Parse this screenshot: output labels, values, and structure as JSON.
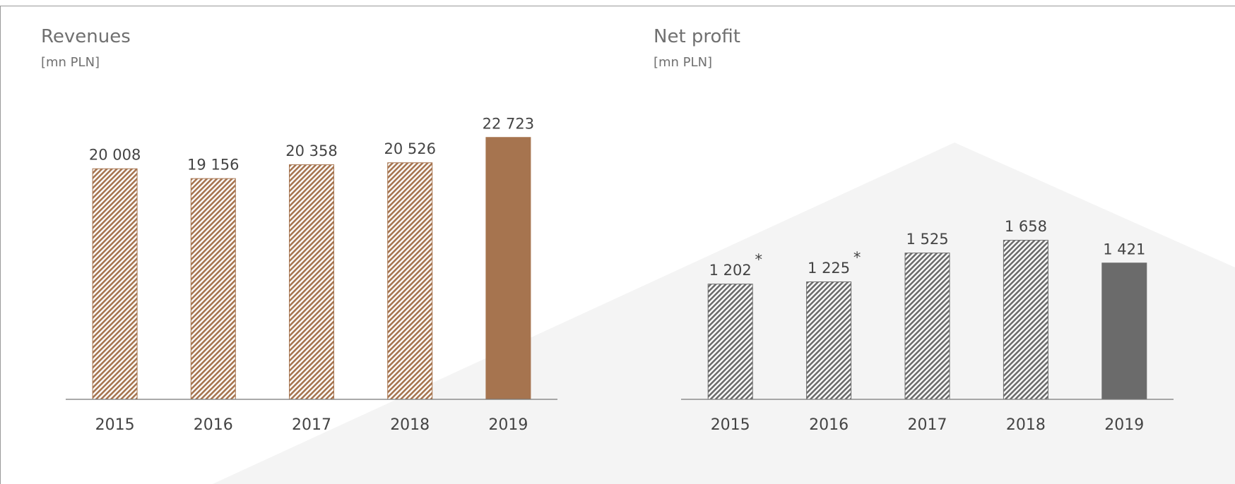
{
  "chart_data": [
    {
      "type": "bar",
      "title": "Revenues",
      "subtitle": "[mn PLN]",
      "categories": [
        "2015",
        "2016",
        "2017",
        "2018",
        "2019"
      ],
      "values": [
        20008,
        19156,
        20358,
        20526,
        22723
      ],
      "value_labels": [
        "20 008",
        "19 156",
        "20 358",
        "20 526",
        "22 723"
      ],
      "color": "#a6744f",
      "hatched": [
        true,
        true,
        true,
        true,
        false
      ],
      "ylim": [
        0,
        25000
      ]
    },
    {
      "type": "bar",
      "title": "Net profit",
      "subtitle": "[mn PLN]",
      "categories": [
        "2015",
        "2016",
        "2017",
        "2018",
        "2019"
      ],
      "values": [
        1202,
        1225,
        1525,
        1658,
        1421
      ],
      "value_labels": [
        "1 202",
        "1 225",
        "1 525",
        "1 658",
        "1 421"
      ],
      "value_label_notes": [
        "*",
        "*",
        null,
        null,
        null
      ],
      "color": "#6b6b6b",
      "hatched": [
        true,
        true,
        true,
        true,
        false
      ],
      "ylim": [
        0,
        3000
      ]
    }
  ]
}
